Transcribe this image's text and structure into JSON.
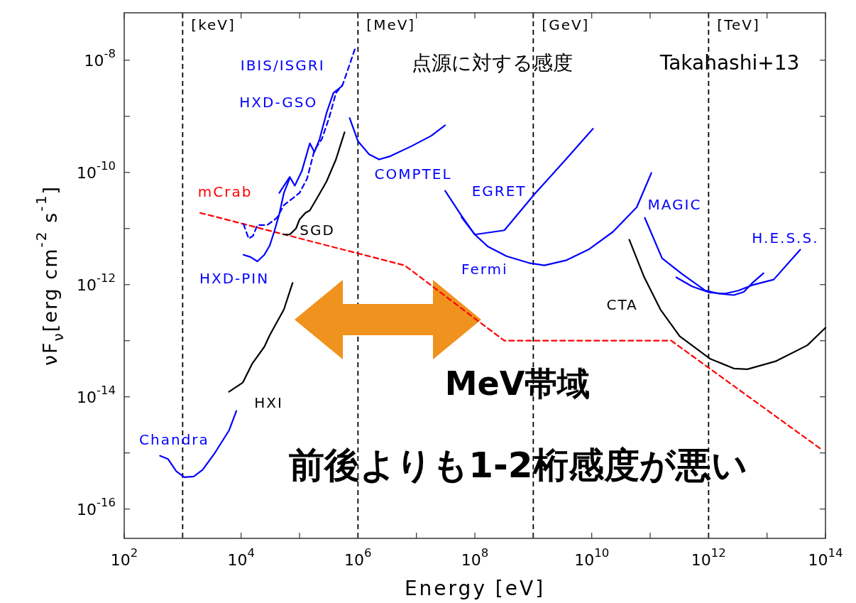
{
  "chart_data": {
    "type": "line",
    "xlabel": "Energy [eV]",
    "ylabel": "νF$_{ν}$[erg cm$^{-2}$ s$^{-1}$]",
    "log": "xy",
    "grid": false,
    "marker": "none",
    "xlim": [
      100,
      100000000000000
    ],
    "ylim": [
      3e-17,
      7e-08
    ],
    "xticks": [
      {
        "value": 100,
        "label": "10$^{2}$"
      },
      {
        "value": 1000,
        "label": null
      },
      {
        "value": 10000,
        "label": "10$^{4}$"
      },
      {
        "value": 100000,
        "label": null
      },
      {
        "value": 1000000,
        "label": "10$^{6}$"
      },
      {
        "value": 10000000,
        "label": null
      },
      {
        "value": 100000000,
        "label": "10$^{8}$"
      },
      {
        "value": 1000000000,
        "label": null
      },
      {
        "value": 10000000000,
        "label": "10$^{10}$"
      },
      {
        "value": 100000000000,
        "label": null
      },
      {
        "value": 1000000000000,
        "label": "10$^{12}$"
      },
      {
        "value": 10000000000000,
        "label": null
      },
      {
        "value": 100000000000000,
        "label": "10$^{14}$"
      }
    ],
    "yticks": [
      {
        "value": 1e-16,
        "label": "10$^{-16}$"
      },
      {
        "value": 1e-15,
        "label": null
      },
      {
        "value": 1e-14,
        "label": "10$^{-14}$"
      },
      {
        "value": 1e-13,
        "label": null
      },
      {
        "value": 1e-12,
        "label": "10$^{-12}$"
      },
      {
        "value": 1e-11,
        "label": null
      },
      {
        "value": 1e-10,
        "label": "10$^{-10}$"
      },
      {
        "value": 1e-09,
        "label": null
      },
      {
        "value": 1e-08,
        "label": "10$^{-8}$"
      }
    ],
    "ref_lines": [
      {
        "axis": "x",
        "value": 1000,
        "label": "[keV]",
        "color": "#000000",
        "line_style": "dashed"
      },
      {
        "axis": "x",
        "value": 1000000,
        "label": "[MeV]",
        "color": "#000000",
        "line_style": "dashed"
      },
      {
        "axis": "x",
        "value": 1000000000,
        "label": "[GeV]",
        "color": "#000000",
        "line_style": "dashed"
      },
      {
        "axis": "x",
        "value": 1000000000000,
        "label": "[TeV]",
        "color": "#000000",
        "line_style": "dashed"
      }
    ],
    "annotations": [
      "点源に対する感度",
      "Takahashi+13",
      "MeV帯域",
      "前後よりも1-2桁感度が悪い"
    ],
    "series": [
      {
        "name": "mCrab",
        "color": "#ff0000",
        "line_style": "dashed",
        "x": [
          2000,
          6300000,
          320000000,
          230000000000,
          81000000000000
        ],
        "values": [
          1.9e-11,
          2.2e-12,
          1e-13,
          1e-13,
          1.2e-15
        ]
      },
      {
        "name": "IBIS/ISGRI",
        "color": "#0000ff",
        "line_style": "dashed",
        "x": [
          11000,
          13500,
          16000,
          19000,
          28000,
          41000,
          54000,
          72000,
          100000,
          135000,
          180000,
          240000,
          320000,
          420000,
          550000,
          890000
        ],
        "values": [
          1.2e-11,
          6.6e-12,
          7.4e-12,
          1.15e-11,
          1.15e-11,
          1.55e-11,
          2.6e-11,
          3.3e-11,
          4.3e-11,
          7.8e-11,
          2.5e-10,
          3.9e-10,
          9.3e-10,
          2.6e-09,
          3.7e-09,
          1.6e-08
        ]
      },
      {
        "name": "HXD-GSO",
        "color": "#0000ff",
        "line_style": "solid",
        "x": [
          45000,
          68000,
          83000,
          110000,
          150000,
          180000,
          220000,
          290000,
          380000,
          540000
        ],
        "values": [
          4.3e-11,
          8.3e-11,
          5.8e-11,
          1.07e-10,
          3.3e-10,
          2.3e-10,
          3.9e-10,
          1.15e-09,
          2.6e-09,
          3.5e-09
        ]
      },
      {
        "name": "HXD-PIN",
        "color": "#0000ff",
        "line_style": "solid",
        "x": [
          11000,
          14500,
          19000,
          25000,
          31000,
          37000,
          45000,
          54000,
          68000
        ],
        "values": [
          3.4e-12,
          3.1e-12,
          2.6e-12,
          3.4e-12,
          5e-12,
          8.9e-12,
          1.8e-11,
          4.3e-11,
          7.9e-11
        ]
      },
      {
        "name": "SGD",
        "color": "#000000",
        "line_style": "solid",
        "x": [
          54000,
          68000,
          87000,
          100000,
          126000,
          150000,
          200000,
          290000,
          420000,
          590000
        ],
        "values": [
          7.8e-12,
          7.8e-12,
          1e-11,
          1.45e-11,
          1.9e-11,
          2.1e-11,
          3.5e-11,
          6.9e-11,
          1.7e-10,
          5.2e-10
        ]
      },
      {
        "name": "HXI",
        "color": "#000000",
        "line_style": "solid",
        "x": [
          6200,
          10700,
          15500,
          25000,
          31000,
          54000,
          76000
        ],
        "values": [
          1.23e-14,
          1.8e-14,
          3.9e-14,
          7.8e-14,
          1.26e-13,
          3.6e-13,
          1.07e-12
        ]
      },
      {
        "name": "Chandra",
        "color": "#0000ff",
        "line_style": "solid",
        "x": [
          410,
          560,
          780,
          1070,
          1550,
          2200,
          3600,
          6200,
          8300
        ],
        "values": [
          8.9e-16,
          7.8e-16,
          4.7e-16,
          3.7e-16,
          3.8e-16,
          5e-16,
          1.02e-15,
          2.5e-15,
          5.6e-15
        ]
      },
      {
        "name": "COMPTEL",
        "color": "#0000ff",
        "line_style": "solid",
        "x": [
          720000,
          1000000,
          1550000,
          2300000,
          3600000,
          8300000,
          18000000,
          31000000
        ],
        "values": [
          9.3e-10,
          3.6e-10,
          2.1e-10,
          1.7e-10,
          1.95e-10,
          2.95e-10,
          4.5e-10,
          6.9e-10
        ]
      },
      {
        "name": "EGRET",
        "color": "#0000ff",
        "line_style": "solid",
        "x": [
          31000000,
          59000000,
          100000000,
          320000000,
          1050000000,
          3600000000,
          10500000000
        ],
        "values": [
          4.7e-11,
          1.7e-11,
          7.8e-12,
          9.3e-12,
          4.1e-11,
          1.7e-10,
          6e-10
        ]
      },
      {
        "name": "Fermi",
        "color": "#0000ff",
        "line_style": "solid",
        "x": [
          59000000,
          100000000,
          166000000,
          350000000,
          890000000,
          1550000000,
          3600000000,
          9100000000,
          23000000000,
          59000000000,
          105000000000
        ],
        "values": [
          1.6e-11,
          7.8e-12,
          4.8e-12,
          3.2e-12,
          2.4e-12,
          2.2e-12,
          2.7e-12,
          4.3e-12,
          8.7e-12,
          2.4e-11,
          9.8e-11
        ]
      },
      {
        "name": "MAGIC",
        "color": "#0000ff",
        "line_style": "solid",
        "x": [
          81000000000,
          160000000000,
          350000000000,
          870000000000,
          1500000000000,
          2700000000000,
          4000000000000,
          5600000000000,
          8700000000000
        ],
        "values": [
          1.55e-11,
          2.95e-12,
          1.55e-12,
          7.9e-13,
          6.9e-13,
          6.5e-13,
          7.4e-13,
          1.07e-12,
          1.6e-12
        ]
      },
      {
        "name": "H.E.S.S.",
        "color": "#0000ff",
        "line_style": "solid",
        "x": [
          280000000000,
          520000000000,
          1050000000000,
          1900000000000,
          3200000000000,
          5600000000000,
          13000000000000,
          37000000000000
        ],
        "values": [
          1.35e-12,
          9.3e-13,
          7.2e-13,
          6.9e-13,
          7.8e-13,
          9.8e-13,
          1.23e-12,
          4.2e-12
        ]
      },
      {
        "name": "CTA",
        "color": "#000000",
        "line_style": "solid",
        "x": [
          44000000000,
          78000000000,
          150000000000,
          320000000000,
          740000000000,
          1050000000000,
          2700000000000,
          4600000000000,
          14000000000000,
          49000000000000,
          100000000000000
        ],
        "values": [
          6.3e-12,
          1.4e-12,
          3.6e-13,
          1.2e-13,
          6.3e-14,
          4.8e-14,
          3.2e-14,
          3.1e-14,
          4.3e-14,
          8.3e-14,
          1.7e-13
        ]
      }
    ]
  }
}
